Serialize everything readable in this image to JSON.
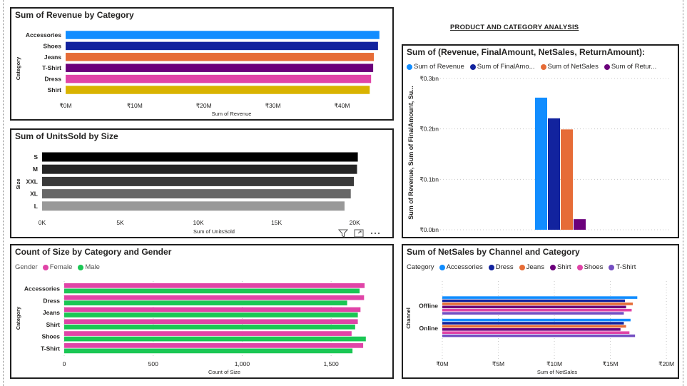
{
  "page_title": "PRODUCT AND CATEGORY ANALYSIS",
  "chart_data": [
    {
      "id": "revenue-by-category",
      "type": "bar",
      "orientation": "horizontal",
      "title": "Sum of Revenue by Category",
      "xlabel": "Sum of Revenue",
      "ylabel": "Category",
      "categories": [
        "Accessories",
        "Shoes",
        "Jeans",
        "T-Shirt",
        "Dress",
        "Shirt"
      ],
      "values": [
        45.4,
        45.2,
        44.6,
        44.5,
        44.2,
        44.0
      ],
      "bar_colors": [
        "#118DFF",
        "#12239E",
        "#E66C37",
        "#6B007B",
        "#E044A7",
        "#D9B300"
      ],
      "value_unit": "₹M",
      "xlim": [
        0,
        48
      ],
      "xticks": [
        0,
        10,
        20,
        30,
        40
      ],
      "xtick_labels": [
        "₹0M",
        "₹10M",
        "₹20M",
        "₹30M",
        "₹40M"
      ]
    },
    {
      "id": "unitssold-by-size",
      "type": "bar",
      "orientation": "horizontal",
      "title": "Sum of UnitsSold by Size",
      "xlabel": "Sum of UnitsSold",
      "ylabel": "Size",
      "categories": [
        "S",
        "M",
        "XXL",
        "XL",
        "L"
      ],
      "values": [
        20200,
        20150,
        19950,
        19750,
        19350
      ],
      "bar_colors": [
        "#000000",
        "#262626",
        "#3a3a3a",
        "#676767",
        "#999999"
      ],
      "xlim": [
        0,
        22000
      ],
      "xticks": [
        0,
        5000,
        10000,
        15000,
        20000
      ],
      "xtick_labels": [
        "0K",
        "5K",
        "10K",
        "15K",
        "20K"
      ]
    },
    {
      "id": "totals-column",
      "type": "bar",
      "orientation": "vertical",
      "title": "Sum of (Revenue, FinalAmount, NetSales, ReturnAmount):",
      "ylabel": "Sum of Revenue, Sum of FinalAmount, Su...",
      "legend_placement": "top",
      "series": [
        {
          "name": "Sum of Revenue",
          "legend_label": "Sum of Revenue",
          "value": 0.262,
          "color": "#118DFF"
        },
        {
          "name": "Sum of FinalAmount",
          "legend_label": "Sum of FinalAmo...",
          "value": 0.221,
          "color": "#12239E"
        },
        {
          "name": "Sum of NetSales",
          "legend_label": "Sum of NetSales",
          "value": 0.199,
          "color": "#E66C37"
        },
        {
          "name": "Sum of ReturnAmount",
          "legend_label": "Sum of Retur...",
          "value": 0.021,
          "color": "#6B007B"
        }
      ],
      "value_unit": "₹bn",
      "ylim": [
        0,
        0.3
      ],
      "yticks": [
        0,
        0.1,
        0.2,
        0.3
      ],
      "ytick_labels": [
        "₹0.0bn",
        "₹0.1bn",
        "₹0.2bn",
        "₹0.3bn"
      ]
    },
    {
      "id": "size-count-by-category-gender",
      "type": "bar",
      "orientation": "horizontal",
      "title": "Count of Size by Category and Gender",
      "xlabel": "Count of Size",
      "ylabel": "Category",
      "legend_title": "Gender",
      "legend_placement": "top-left",
      "categories": [
        "Accessories",
        "Dress",
        "Jeans",
        "Shirt",
        "Shoes",
        "T-Shirt"
      ],
      "series": [
        {
          "name": "Female",
          "color": "#E044A7",
          "values": [
            1688,
            1685,
            1665,
            1650,
            1615,
            1680
          ]
        },
        {
          "name": "Male",
          "color": "#1AC754",
          "values": [
            1660,
            1590,
            1650,
            1635,
            1695,
            1620
          ]
        }
      ],
      "xlim": [
        0,
        1800
      ],
      "xticks": [
        0,
        500,
        1000,
        1500
      ],
      "xtick_labels": [
        "0",
        "500",
        "1,000",
        "1,500"
      ]
    },
    {
      "id": "netsales-by-channel-category",
      "type": "bar",
      "orientation": "horizontal",
      "title": "Sum of NetSales by Channel and Category",
      "xlabel": "Sum of NetSales",
      "ylabel": "Channel",
      "legend_title": "Category",
      "legend_placement": "top-left",
      "categories": [
        "Offline",
        "Online"
      ],
      "series": [
        {
          "name": "Accessories",
          "color": "#118DFF",
          "values": [
            17.4,
            16.8
          ]
        },
        {
          "name": "Dress",
          "color": "#12239E",
          "values": [
            16.3,
            16.2
          ]
        },
        {
          "name": "Jeans",
          "color": "#E66C37",
          "values": [
            17.0,
            16.4
          ]
        },
        {
          "name": "Shirt",
          "color": "#6B007B",
          "values": [
            16.4,
            15.9
          ]
        },
        {
          "name": "Shoes",
          "color": "#E044A7",
          "values": [
            16.9,
            16.7
          ]
        },
        {
          "name": "T-Shirt",
          "color": "#744EC2",
          "values": [
            16.2,
            17.2
          ]
        }
      ],
      "value_unit": "₹M",
      "xlim": [
        0,
        20.5
      ],
      "xticks": [
        0,
        5,
        10,
        15,
        20
      ],
      "xtick_labels": [
        "₹0M",
        "₹5M",
        "₹10M",
        "₹15M",
        "₹20M"
      ]
    }
  ]
}
